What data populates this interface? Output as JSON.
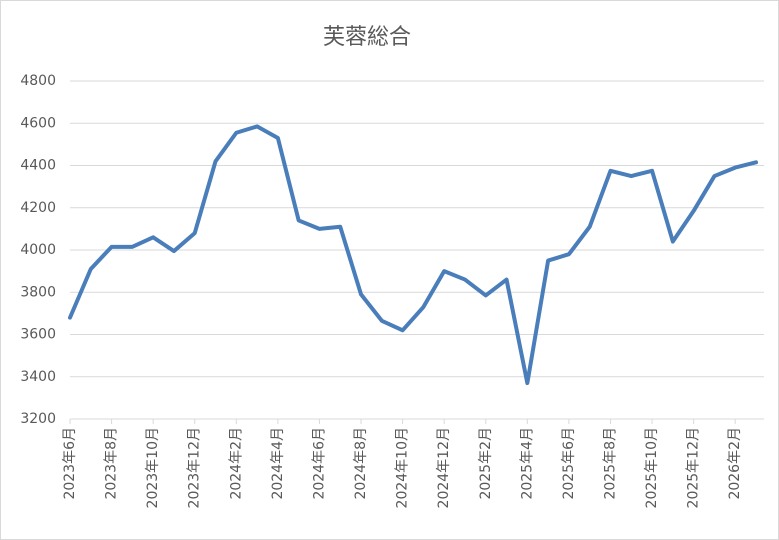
{
  "chart_data": {
    "type": "line",
    "title": "芙蓉総合",
    "categories": [
      "2023年6月",
      null,
      "2023年8月",
      null,
      "2023年10月",
      null,
      "2023年12月",
      null,
      "2024年2月",
      null,
      "2024年4月",
      null,
      "2024年6月",
      null,
      "2024年8月",
      null,
      "2024年10月",
      null,
      "2024年12月",
      null,
      "2025年2月",
      null,
      "2025年4月",
      null,
      "2025年6月",
      null,
      "2025年8月",
      null,
      "2025年10月",
      null,
      "2025年12月",
      null,
      "2026年2月",
      null
    ],
    "values": [
      3680,
      3910,
      4015,
      4015,
      4060,
      3995,
      4080,
      4420,
      4555,
      4585,
      4530,
      4140,
      4100,
      4110,
      3790,
      3665,
      3620,
      3730,
      3900,
      3860,
      3785,
      3860,
      3370,
      3950,
      3980,
      4110,
      4375,
      4350,
      4375,
      4040,
      4185,
      4350,
      4390,
      4415
    ],
    "color": "#4a7ebb",
    "ylim": [
      3200,
      4800
    ],
    "yticks": [
      3200,
      3400,
      3600,
      3800,
      4000,
      4200,
      4400,
      4600,
      4800
    ],
    "grid": true
  }
}
